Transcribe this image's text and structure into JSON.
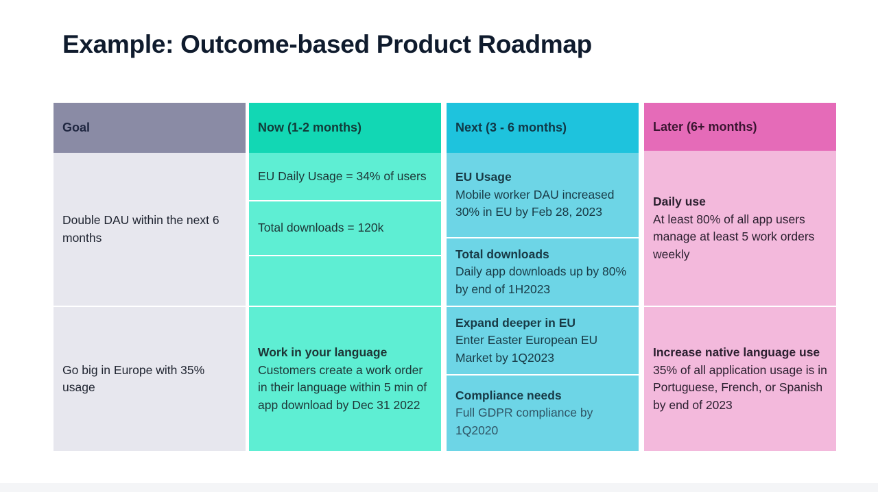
{
  "title": "Example: Outcome-based Product Roadmap",
  "columns": {
    "goal": "Goal",
    "now": "Now (1-2 months)",
    "next": "Next (3 - 6 months)",
    "later": "Later (6+ months)"
  },
  "rows": [
    {
      "goal": "Double DAU within the next 6 months",
      "now": [
        {
          "text": "EU Daily Usage = 34% of users"
        },
        {
          "text": "Total downloads = 120k"
        },
        {
          "text": ""
        }
      ],
      "next": [
        {
          "heading": "EU Usage",
          "text": "Mobile worker DAU increased 30% in EU by Feb 28, 2023"
        },
        {
          "heading": "Total downloads",
          "text": "Daily app downloads up by 80% by end of 1H2023"
        }
      ],
      "later": {
        "heading": "Daily use",
        "text": "At least 80% of all app users manage at least 5 work orders weekly"
      }
    },
    {
      "goal": "Go big in Europe with 35% usage",
      "now": {
        "heading": "Work in your language",
        "text": "Customers create a work order in their language within 5 min of app download by Dec 31 2022"
      },
      "next": [
        {
          "heading": "Expand deeper in EU",
          "text": "Enter Easter European EU Market by 1Q2023"
        },
        {
          "heading": "Compliance needs",
          "text": "Full GDPR compliance by 1Q2020"
        }
      ],
      "later": {
        "heading": "Increase native language use",
        "text": "35% of all application usage is in Portuguese, French, or Spanish by end of 2023"
      }
    }
  ]
}
